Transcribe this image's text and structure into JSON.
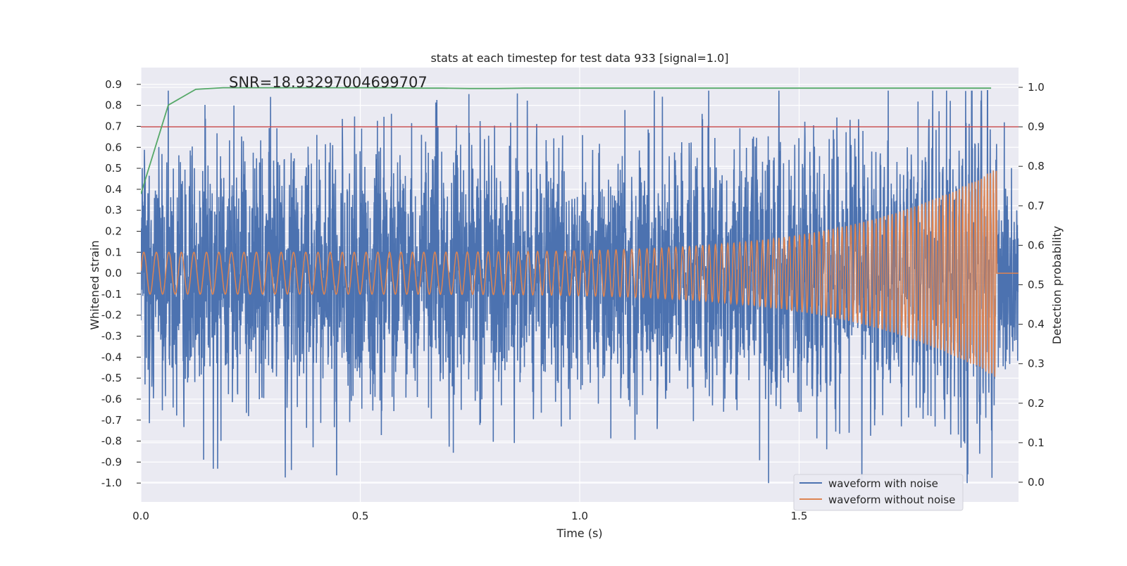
{
  "chart_data": {
    "type": "line",
    "title": "stats at each timestep for test data 933 [signal=1.0]",
    "xlabel": "Time (s)",
    "ylabel": "Whitened strain",
    "y2label": "Detection probability",
    "annotation": "SNR=18.93297004699707",
    "xlim": [
      0.0,
      2.0
    ],
    "ylim": [
      -1.09,
      0.98
    ],
    "y2lim": [
      -0.05,
      1.05
    ],
    "x_ticks": [
      "0.0",
      "0.5",
      "1.0",
      "1.5"
    ],
    "y_ticks": [
      "0.9",
      "0.8",
      "0.7",
      "0.6",
      "0.5",
      "0.4",
      "0.3",
      "0.2",
      "0.1",
      "0.0",
      "-0.1",
      "-0.2",
      "-0.3",
      "-0.4",
      "-0.5",
      "-0.6",
      "-0.7",
      "-0.8",
      "-0.9",
      "-1.0"
    ],
    "y2_ticks": [
      "1.0",
      "0.9",
      "0.8",
      "0.7",
      "0.6",
      "0.5",
      "0.4",
      "0.3",
      "0.2",
      "0.1",
      "0.0"
    ],
    "grid": true,
    "legend_position": "lower-right",
    "series": [
      {
        "name": "waveform with noise",
        "color": "#4c72b0",
        "axis": "left",
        "description_range": [
          -1.0,
          0.87
        ]
      },
      {
        "name": "waveform without noise",
        "color": "#dd8452",
        "axis": "left",
        "start_frequency_hz": 35,
        "end_frequency_hz": 150,
        "start_amplitude": 0.1,
        "peak_amplitude": 0.5
      },
      {
        "name": "",
        "color": "#55a868",
        "axis": "right",
        "x": [
          0.0,
          0.0625,
          0.125,
          0.1875,
          0.25,
          0.3125,
          0.375,
          0.4375,
          0.5,
          0.5625,
          0.625,
          0.6875,
          0.75,
          0.8125,
          0.875,
          0.9375,
          1.0,
          1.0625,
          1.125,
          1.1875,
          1.25,
          1.3125,
          1.375,
          1.4375,
          1.5,
          1.5625,
          1.625,
          1.6875,
          1.75,
          1.8125,
          1.875,
          1.9375
        ],
        "y": [
          0.73,
          0.955,
          0.995,
          0.999,
          0.999,
          0.999,
          0.999,
          0.999,
          0.999,
          0.999,
          0.998,
          0.998,
          0.997,
          0.997,
          0.998,
          0.998,
          0.998,
          0.998,
          0.998,
          0.998,
          0.998,
          0.998,
          0.998,
          0.998,
          0.998,
          0.998,
          0.998,
          0.998,
          0.998,
          0.998,
          0.998,
          0.998
        ]
      }
    ],
    "hline": {
      "value": 0.9,
      "axis": "right",
      "color": "#c44e52"
    }
  }
}
